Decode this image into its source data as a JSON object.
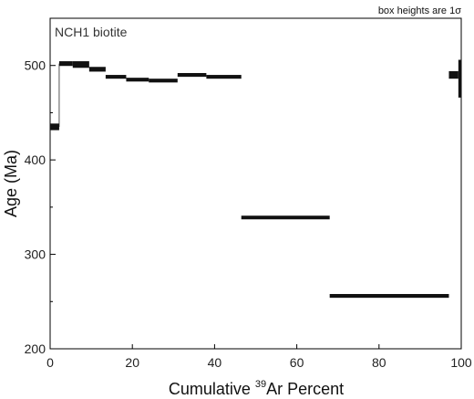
{
  "chart_data": {
    "type": "age-spectrum",
    "note_prefix": "box heights are 1",
    "note_symbol": "σ",
    "panel_label": "NCH1 biotite",
    "xlabel_prefix": "Cumulative ",
    "xlabel_sup": "39",
    "xlabel_suffix": "Ar Percent",
    "ylabel": "Age (Ma)",
    "xlim": [
      0,
      100
    ],
    "ylim": [
      200,
      500
    ],
    "x_ticks": [
      0,
      20,
      40,
      60,
      80,
      100
    ],
    "y_ticks": [
      200,
      300,
      400,
      500
    ],
    "y_minor_ticks": [
      250,
      350,
      450
    ],
    "axis_top_value": 550,
    "colors": {
      "steps": "#111111",
      "axes": "#000000",
      "connector": "#555555"
    },
    "steps": [
      {
        "x0": 0.0,
        "x1": 2.2,
        "age": 435,
        "err": 3.5
      },
      {
        "x0": 2.2,
        "x1": 5.5,
        "age": 502,
        "err": 2.5
      },
      {
        "x0": 5.5,
        "x1": 9.5,
        "age": 501,
        "err": 3.5
      },
      {
        "x0": 9.5,
        "x1": 13.5,
        "age": 496,
        "err": 2.5
      },
      {
        "x0": 13.5,
        "x1": 18.5,
        "age": 488,
        "err": 2
      },
      {
        "x0": 18.5,
        "x1": 24.0,
        "age": 485,
        "err": 2
      },
      {
        "x0": 24.0,
        "x1": 31.0,
        "age": 484,
        "err": 2
      },
      {
        "x0": 31.0,
        "x1": 38.0,
        "age": 490,
        "err": 2
      },
      {
        "x0": 38.0,
        "x1": 46.5,
        "age": 488,
        "err": 2
      },
      {
        "x0": 46.5,
        "x1": 68.0,
        "age": 339,
        "err": 1.5
      },
      {
        "x0": 68.0,
        "x1": 97.0,
        "age": 256,
        "err": 2
      },
      {
        "x0": 97.0,
        "x1": 99.3,
        "age": 490,
        "err": 4
      },
      {
        "x0": 99.3,
        "x1": 100.0,
        "age": 486,
        "err": 20
      }
    ]
  }
}
